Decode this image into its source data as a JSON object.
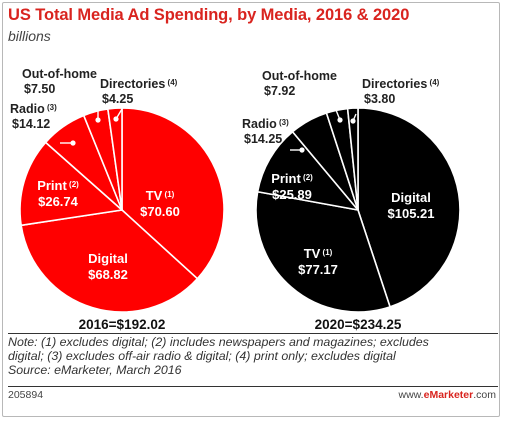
{
  "title": "US Total Media Ad Spending, by Media, 2016 & 2020",
  "subtitle": "billions",
  "colors": {
    "accent": "#d9241f",
    "pie_2016": "#ff0000",
    "pie_2020": "#000000",
    "label_dark": "#222222"
  },
  "chart_data": [
    {
      "type": "pie",
      "total_label": "2016=$192.02",
      "slices": [
        {
          "name": "TV",
          "note": "(1)",
          "value": 70.6,
          "label": "$70.60"
        },
        {
          "name": "Digital",
          "note": "",
          "value": 68.82,
          "label": "$68.82"
        },
        {
          "name": "Print",
          "note": "(2)",
          "value": 26.74,
          "label": "$26.74"
        },
        {
          "name": "Radio",
          "note": "(3)",
          "value": 14.12,
          "label": "$14.12"
        },
        {
          "name": "Out-of-home",
          "note": "",
          "value": 7.5,
          "label": "$7.50"
        },
        {
          "name": "Directories",
          "note": "(4)",
          "value": 4.25,
          "label": "$4.25"
        }
      ]
    },
    {
      "type": "pie",
      "total_label": "2020=$234.25",
      "slices": [
        {
          "name": "Digital",
          "note": "",
          "value": 105.21,
          "label": "$105.21"
        },
        {
          "name": "TV",
          "note": "(1)",
          "value": 77.17,
          "label": "$77.17"
        },
        {
          "name": "Print",
          "note": "(2)",
          "value": 25.89,
          "label": "$25.89"
        },
        {
          "name": "Radio",
          "note": "(3)",
          "value": 14.25,
          "label": "$14.25"
        },
        {
          "name": "Out-of-home",
          "note": "",
          "value": 7.92,
          "label": "$7.92"
        },
        {
          "name": "Directories",
          "note": "(4)",
          "value": 3.8,
          "label": "$3.80"
        }
      ]
    }
  ],
  "notes": [
    "Note: (1) excludes digital; (2) includes newspapers and magazines; excludes",
    "digital; (3) excludes off-air radio & digital; (4) print only; excludes digital",
    "Source: eMarketer, March 2016"
  ],
  "footer": {
    "chart_id": "205894",
    "site_prefix": "www.",
    "site_brand": "eMarketer",
    "site_suffix": ".com"
  }
}
